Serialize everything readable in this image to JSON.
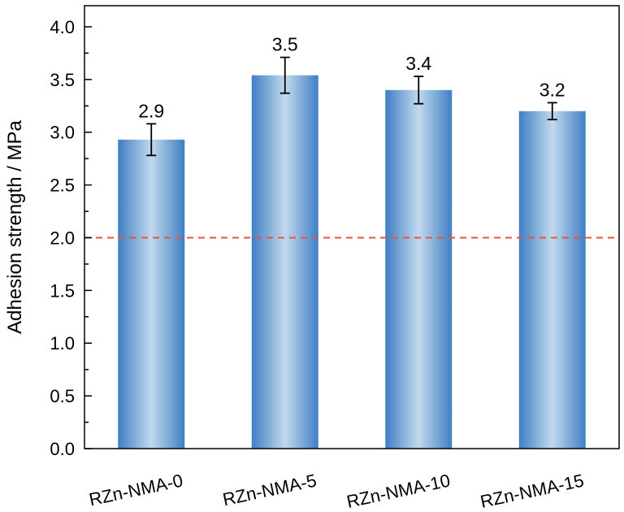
{
  "chart_data": {
    "type": "bar",
    "title": "",
    "xlabel": "",
    "ylabel": "Adhesion strength / MPa",
    "categories": [
      "RZn-NMA-0",
      "RZn-NMA-5",
      "RZn-NMA-10",
      "RZn-NMA-15"
    ],
    "values": [
      2.93,
      3.54,
      3.4,
      3.2
    ],
    "errors": [
      0.15,
      0.17,
      0.13,
      0.08
    ],
    "data_labels": [
      "2.9",
      "3.5",
      "3.4",
      "3.2"
    ],
    "ylim": [
      0,
      4.2
    ],
    "yticks": [
      "0.0",
      "0.5",
      "1.0",
      "1.5",
      "2.0",
      "2.5",
      "3.0",
      "3.5",
      "4.0"
    ],
    "reference_line": {
      "y": 2.0,
      "style": "dashed",
      "color": "#e8553a"
    },
    "bar_color_edge": "#3f7fc4",
    "bar_color_center": "#c2d9ee",
    "grid": false,
    "legend": "none"
  }
}
